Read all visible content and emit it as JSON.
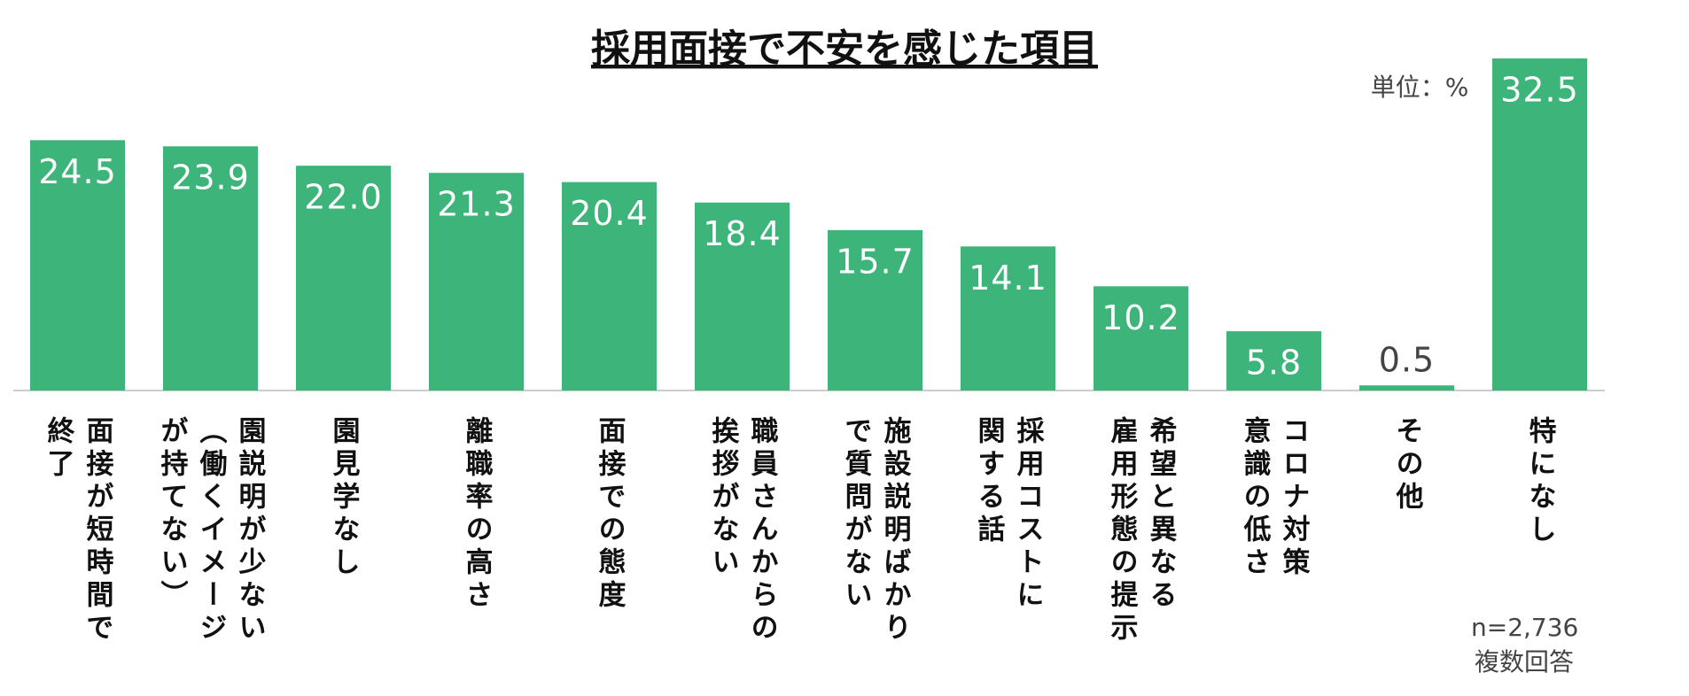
{
  "chart_data": {
    "type": "bar",
    "title": "採用面接で不安を感じた項目",
    "unit_note": "単位：%",
    "sample_note": "n=2,736",
    "answer_note": "複数回答",
    "categories": [
      "面接が短時間で\n終了",
      "園説明が少ない\n（働くイメージ\nが持てない）",
      "園見学なし",
      "離職率の高さ",
      "面接での態度",
      "職員さんからの\n挨拶がない",
      "施設説明ばかり\nで質問がない",
      "採用コストに\n関する話",
      "希望と異なる\n雇用形態の提示",
      "コロナ対策\n意識の低さ",
      "その他",
      "特になし"
    ],
    "values": [
      24.5,
      23.9,
      22.0,
      21.3,
      20.4,
      18.4,
      15.7,
      14.1,
      10.2,
      5.8,
      0.5,
      32.5
    ],
    "value_labels": [
      "24.5",
      "23.9",
      "22.0",
      "21.3",
      "20.4",
      "18.4",
      "15.7",
      "14.1",
      "10.2",
      "5.8",
      "0.5",
      "32.5"
    ],
    "color": "#3db47a"
  }
}
